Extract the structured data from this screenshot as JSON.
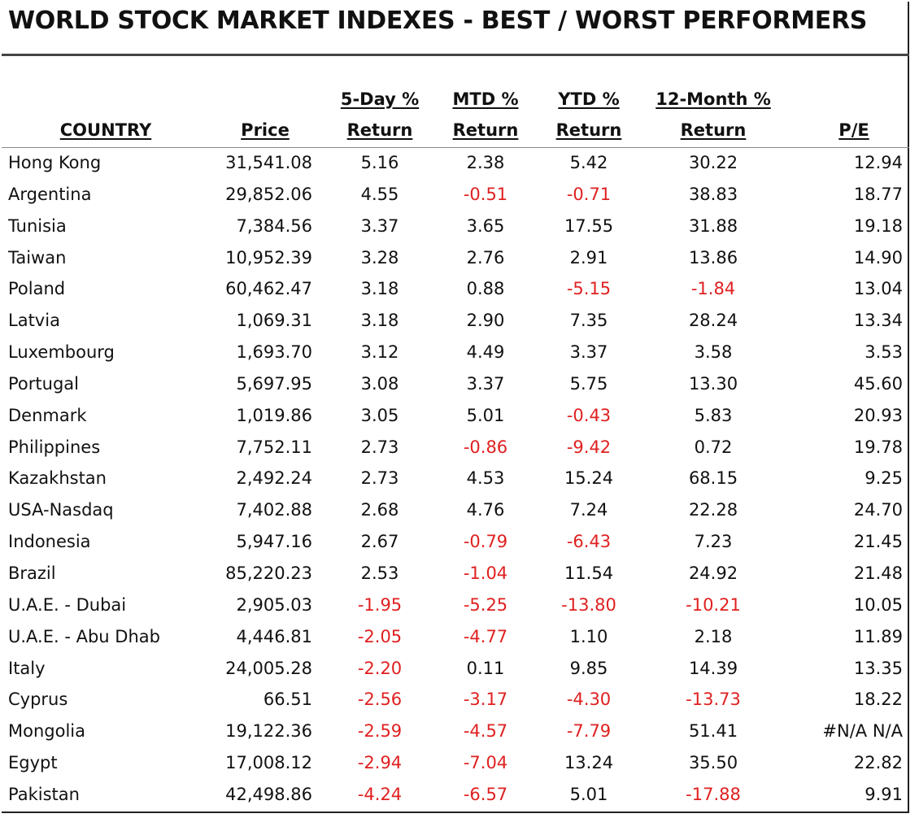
{
  "title": "WORLD STOCK MARKET INDEXES - BEST / WORST PERFORMERS",
  "headers": {
    "country": "COUNTRY",
    "price": "Price",
    "five_day_top": "5-Day %",
    "five_day_bottom": "Return",
    "mtd_top": "MTD %",
    "mtd_bottom": "Return",
    "ytd_top": "YTD %",
    "ytd_bottom": "Return",
    "twelve_top": "12-Month %",
    "twelve_bottom": "Return",
    "pe": "P/E"
  },
  "colors": {
    "negative": "#e02020",
    "text": "#111111"
  },
  "rows": [
    {
      "country": "Hong Kong",
      "price": "31,541.08",
      "d5": "5.16",
      "mtd": "2.38",
      "ytd": "5.42",
      "m12": "30.22",
      "pe": "12.94"
    },
    {
      "country": "Argentina",
      "price": "29,852.06",
      "d5": "4.55",
      "mtd": "-0.51",
      "ytd": "-0.71",
      "m12": "38.83",
      "pe": "18.77"
    },
    {
      "country": "Tunisia",
      "price": "7,384.56",
      "d5": "3.37",
      "mtd": "3.65",
      "ytd": "17.55",
      "m12": "31.88",
      "pe": "19.18"
    },
    {
      "country": "Taiwan",
      "price": "10,952.39",
      "d5": "3.28",
      "mtd": "2.76",
      "ytd": "2.91",
      "m12": "13.86",
      "pe": "14.90"
    },
    {
      "country": "Poland",
      "price": "60,462.47",
      "d5": "3.18",
      "mtd": "0.88",
      "ytd": "-5.15",
      "m12": "-1.84",
      "pe": "13.04"
    },
    {
      "country": "Latvia",
      "price": "1,069.31",
      "d5": "3.18",
      "mtd": "2.90",
      "ytd": "7.35",
      "m12": "28.24",
      "pe": "13.34"
    },
    {
      "country": "Luxembourg",
      "price": "1,693.70",
      "d5": "3.12",
      "mtd": "4.49",
      "ytd": "3.37",
      "m12": "3.58",
      "pe": "3.53"
    },
    {
      "country": "Portugal",
      "price": "5,697.95",
      "d5": "3.08",
      "mtd": "3.37",
      "ytd": "5.75",
      "m12": "13.30",
      "pe": "45.60"
    },
    {
      "country": "Denmark",
      "price": "1,019.86",
      "d5": "3.05",
      "mtd": "5.01",
      "ytd": "-0.43",
      "m12": "5.83",
      "pe": "20.93"
    },
    {
      "country": "Philippines",
      "price": "7,752.11",
      "d5": "2.73",
      "mtd": "-0.86",
      "ytd": "-9.42",
      "m12": "0.72",
      "pe": "19.78"
    },
    {
      "country": "Kazakhstan",
      "price": "2,492.24",
      "d5": "2.73",
      "mtd": "4.53",
      "ytd": "15.24",
      "m12": "68.15",
      "pe": "9.25"
    },
    {
      "country": "USA-Nasdaq",
      "price": "7,402.88",
      "d5": "2.68",
      "mtd": "4.76",
      "ytd": "7.24",
      "m12": "22.28",
      "pe": "24.70"
    },
    {
      "country": "Indonesia",
      "price": "5,947.16",
      "d5": "2.67",
      "mtd": "-0.79",
      "ytd": "-6.43",
      "m12": "7.23",
      "pe": "21.45"
    },
    {
      "country": "Brazil",
      "price": "85,220.23",
      "d5": "2.53",
      "mtd": "-1.04",
      "ytd": "11.54",
      "m12": "24.92",
      "pe": "21.48"
    },
    {
      "country": "U.A.E. - Dubai",
      "price": "2,905.03",
      "d5": "-1.95",
      "mtd": "-5.25",
      "ytd": "-13.80",
      "m12": "-10.21",
      "pe": "10.05"
    },
    {
      "country": "U.A.E. - Abu Dhab",
      "price": "4,446.81",
      "d5": "-2.05",
      "mtd": "-4.77",
      "ytd": "1.10",
      "m12": "2.18",
      "pe": "11.89"
    },
    {
      "country": "Italy",
      "price": "24,005.28",
      "d5": "-2.20",
      "mtd": "0.11",
      "ytd": "9.85",
      "m12": "14.39",
      "pe": "13.35"
    },
    {
      "country": "Cyprus",
      "price": "66.51",
      "d5": "-2.56",
      "mtd": "-3.17",
      "ytd": "-4.30",
      "m12": "-13.73",
      "pe": "18.22"
    },
    {
      "country": "Mongolia",
      "price": "19,122.36",
      "d5": "-2.59",
      "mtd": "-4.57",
      "ytd": "-7.79",
      "m12": "51.41",
      "pe": "#N/A N/A"
    },
    {
      "country": "Egypt",
      "price": "17,008.12",
      "d5": "-2.94",
      "mtd": "-7.04",
      "ytd": "13.24",
      "m12": "35.50",
      "pe": "22.82"
    },
    {
      "country": "Pakistan",
      "price": "42,498.86",
      "d5": "-4.24",
      "mtd": "-6.57",
      "ytd": "5.01",
      "m12": "-17.88",
      "pe": "9.91"
    }
  ]
}
